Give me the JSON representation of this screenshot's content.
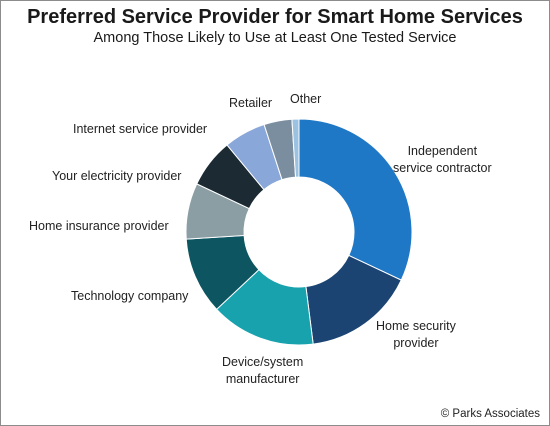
{
  "title": "Preferred Service Provider for Smart Home Services",
  "subtitle": "Among Those Likely to Use at Least One Tested Service",
  "copyright": "© Parks Associates",
  "chart_data": {
    "type": "pie",
    "donut": true,
    "title": "Preferred Service Provider for Smart Home Services",
    "subtitle": "Among Those Likely to Use at Least One Tested Service",
    "unit": "share of respondents (%)",
    "categories": [
      "Independent service contractor",
      "Home security provider",
      "Device/system manufacturer",
      "Technology company",
      "Home insurance provider",
      "Your electricity provider",
      "Internet service provider",
      "Retailer",
      "Other"
    ],
    "values": [
      32,
      16,
      15,
      11,
      8,
      7,
      6,
      4,
      1
    ],
    "colors": [
      "#1f78c6",
      "#1b4472",
      "#17a2ad",
      "#0d5561",
      "#8a9ea4",
      "#1b2a33",
      "#89a7d8",
      "#7b8ea0",
      "#9cc2e2"
    ],
    "labels": {
      "contractor": [
        "Independent",
        "service contractor"
      ],
      "security": [
        "Home security",
        "provider"
      ],
      "device": [
        "Device/system",
        "manufacturer"
      ],
      "tech": "Technology company",
      "insurance": "Home insurance provider",
      "electricity": "Your electricity provider",
      "isp": "Internet service provider",
      "retailer": "Retailer",
      "other": "Other"
    }
  }
}
